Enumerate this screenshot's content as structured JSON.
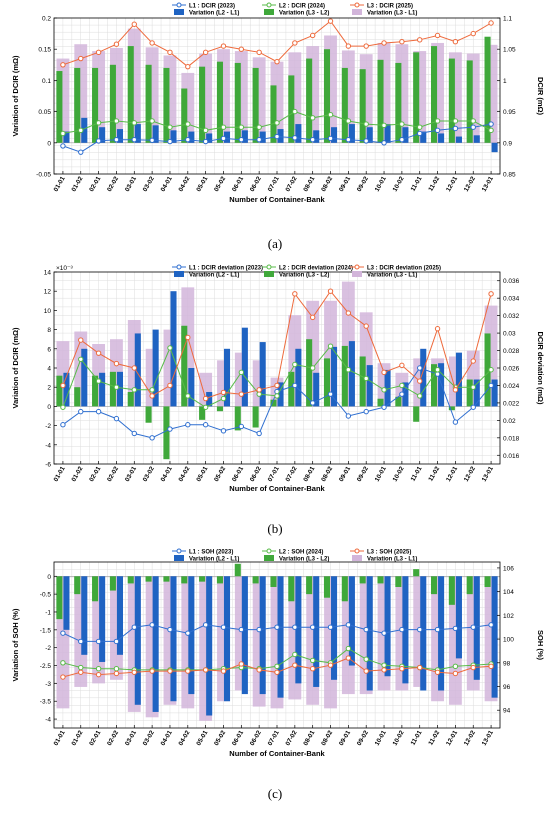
{
  "colors": {
    "l1": "#2f6fd0",
    "l2": "#58bb48",
    "l3": "#ee6a3c",
    "bar_l2_l1": "#1f63c2",
    "bar_l3_l2": "#3fa83a",
    "bar_l3_l1": "#d2b5da"
  },
  "chart_data": [
    {
      "type": "bar+line",
      "panel_label": "(a)",
      "categories": [
        "01-01",
        "01-02",
        "02-01",
        "02-02",
        "03-01",
        "03-02",
        "04-01",
        "04-02",
        "05-01",
        "05-02",
        "06-01",
        "06-02",
        "07-01",
        "07-02",
        "08-01",
        "08-02",
        "09-01",
        "09-02",
        "10-01",
        "10-02",
        "11-01",
        "11-02",
        "12-01",
        "12-02",
        "13-01"
      ],
      "xlabel": "Number of Container-Bank",
      "ylabel_left": "Variation of DCIR (mΩ)",
      "ylabel_right": "DCIR (mΩ)",
      "left_ylim": [
        -0.05,
        0.2
      ],
      "left_ticks": [
        "-0.05",
        "0",
        "0.05",
        "0.1",
        "0.15",
        "0.2"
      ],
      "left_tick_values": [
        -0.05,
        0,
        0.05,
        0.1,
        0.15,
        0.2
      ],
      "right_ylim": [
        0.85,
        1.1
      ],
      "right_ticks": [
        "0.85",
        "0.9",
        "0.95",
        "1",
        "1.05",
        "1.1"
      ],
      "right_tick_values": [
        0.85,
        0.9,
        0.95,
        1.0,
        1.05,
        1.1
      ],
      "legend": [
        "L1 : DCIR (2023)",
        "L2 : DCIR (2024)",
        "L3 : DCIR (2025)",
        "Variation (L2 - L1)",
        "Variation (L3 - L2)",
        "Variation (L3 - L1)"
      ],
      "bars": {
        "l3_l1": [
          0.135,
          0.158,
          0.147,
          0.152,
          0.183,
          0.153,
          0.14,
          0.112,
          0.143,
          0.15,
          0.147,
          0.137,
          0.13,
          0.145,
          0.155,
          0.172,
          0.148,
          0.142,
          0.16,
          0.158,
          0.147,
          0.16,
          0.145,
          0.143,
          0.157
        ],
        "l2_l1": [
          0.018,
          0.04,
          0.025,
          0.022,
          0.03,
          0.028,
          0.02,
          0.018,
          0.015,
          0.018,
          0.02,
          0.018,
          0.022,
          0.03,
          0.02,
          0.025,
          0.03,
          0.025,
          0.03,
          0.025,
          0.018,
          0.015,
          0.01,
          0.012,
          -0.015
        ],
        "l3_l2": [
          0.115,
          0.12,
          0.12,
          0.125,
          0.155,
          0.125,
          0.12,
          0.087,
          0.122,
          0.13,
          0.128,
          0.12,
          0.092,
          0.108,
          0.135,
          0.15,
          0.12,
          0.118,
          0.133,
          0.128,
          0.145,
          0.155,
          0.135,
          0.132,
          0.17
        ]
      },
      "lines": {
        "l1": [
          0.895,
          0.885,
          0.903,
          0.905,
          0.905,
          0.904,
          0.902,
          0.905,
          0.902,
          0.907,
          0.905,
          0.905,
          0.91,
          0.908,
          0.905,
          0.907,
          0.905,
          0.903,
          0.9,
          0.905,
          0.915,
          0.92,
          0.923,
          0.925,
          0.93
        ],
        "l2": [
          0.915,
          0.92,
          0.932,
          0.935,
          0.932,
          0.935,
          0.925,
          0.93,
          0.92,
          0.925,
          0.925,
          0.925,
          0.932,
          0.95,
          0.94,
          0.945,
          0.935,
          0.93,
          0.928,
          0.93,
          0.925,
          0.935,
          0.935,
          0.935,
          0.92
        ],
        "l3": [
          1.025,
          1.035,
          1.045,
          1.058,
          1.09,
          1.06,
          1.045,
          1.022,
          1.045,
          1.055,
          1.05,
          1.045,
          1.03,
          1.06,
          1.072,
          1.095,
          1.055,
          1.055,
          1.06,
          1.062,
          1.065,
          1.072,
          1.062,
          1.075,
          1.092
        ]
      }
    },
    {
      "type": "bar+line",
      "panel_label": "(b)",
      "categories": [
        "01-01",
        "01-02",
        "02-01",
        "02-02",
        "03-01",
        "03-02",
        "04-01",
        "04-02",
        "05-01",
        "05-02",
        "06-01",
        "06-02",
        "07-01",
        "07-02",
        "08-01",
        "08-02",
        "09-01",
        "09-02",
        "10-01",
        "10-02",
        "11-01",
        "11-02",
        "12-01",
        "12-02",
        "13-01"
      ],
      "xlabel": "Number of Container-Bank",
      "ylabel_left": "Variation of DCIR (mΩ)",
      "ylabel_right": "DCIR deviation (mΩ)",
      "left_scale_note": "×10⁻³",
      "left_ylim": [
        -6,
        14
      ],
      "left_ticks": [
        "-6",
        "-4",
        "-2",
        "0",
        "2",
        "4",
        "6",
        "8",
        "10",
        "12",
        "14"
      ],
      "left_tick_values": [
        -6,
        -4,
        -2,
        0,
        2,
        4,
        6,
        8,
        10,
        12,
        14
      ],
      "right_ylim": [
        0.015,
        0.037
      ],
      "right_ticks": [
        "0.016",
        "0.018",
        "0.02",
        "0.022",
        "0.024",
        "0.026",
        "0.028",
        "0.03",
        "0.032",
        "0.034",
        "0.036"
      ],
      "right_tick_values": [
        0.016,
        0.018,
        0.02,
        0.022,
        0.024,
        0.026,
        0.028,
        0.03,
        0.032,
        0.034,
        0.036
      ],
      "legend": [
        "L1 : DCIR deviation (2023)",
        "L2 : DCIR deviation (2024)",
        "L3 : DCIR deviation (2025)",
        "Variation (L2 - L1)",
        "Variation (L3 - L2)",
        "Variation (L3 - L1)"
      ],
      "bars": {
        "l3_l1": [
          6.8,
          7.8,
          6.5,
          7.0,
          9.0,
          6.0,
          8.0,
          12.4,
          3.5,
          4.8,
          5.6,
          4.8,
          3.0,
          9.5,
          11.0,
          11.0,
          13.0,
          9.8,
          4.5,
          3.5,
          5.0,
          5.0,
          5.2,
          5.8,
          10.5
        ],
        "l2_l1": [
          3.5,
          6.0,
          3.5,
          3.6,
          7.6,
          8.0,
          12.0,
          4.0,
          1.5,
          6.0,
          8.2,
          6.7,
          2.5,
          6.0,
          3.5,
          6.2,
          6.8,
          4.3,
          3.8,
          2.5,
          6.0,
          4.5,
          5.6,
          2.8,
          2.8
        ],
        "l3_l2": [
          3.2,
          2.0,
          3.2,
          3.6,
          1.5,
          -1.7,
          -5.5,
          8.4,
          -1.4,
          -0.5,
          -2.5,
          -2.2,
          0.7,
          3.6,
          7.0,
          5.0,
          6.3,
          5.2,
          0.8,
          1.0,
          -1.6,
          4.4,
          -0.4,
          2.8,
          7.6
        ]
      },
      "lines": {
        "l1": [
          0.0195,
          0.021,
          0.021,
          0.0202,
          0.0185,
          0.018,
          0.019,
          0.0195,
          0.0195,
          0.0188,
          0.0193,
          0.0185,
          0.0233,
          0.024,
          0.022,
          0.023,
          0.0205,
          0.021,
          0.0215,
          0.023,
          0.026,
          0.0253,
          0.0198,
          0.0215,
          0.024
        ],
        "l2": [
          0.0215,
          0.027,
          0.0245,
          0.0238,
          0.0235,
          0.0235,
          0.0283,
          0.0228,
          0.0215,
          0.0225,
          0.0255,
          0.023,
          0.0228,
          0.0264,
          0.026,
          0.0285,
          0.0258,
          0.0248,
          0.0235,
          0.024,
          0.0228,
          0.0258,
          0.0238,
          0.0238,
          0.0258
        ],
        "l3": [
          0.024,
          0.0292,
          0.0277,
          0.0265,
          0.026,
          0.0228,
          0.024,
          0.0295,
          0.0225,
          0.0232,
          0.023,
          0.0235,
          0.024,
          0.0345,
          0.0318,
          0.0348,
          0.0323,
          0.0308,
          0.0255,
          0.0263,
          0.0245,
          0.0305,
          0.0235,
          0.0268,
          0.0345
        ]
      }
    },
    {
      "type": "bar+line",
      "panel_label": "(c)",
      "categories": [
        "01-01",
        "01-02",
        "02-01",
        "02-02",
        "03-01",
        "03-02",
        "04-01",
        "04-02",
        "05-01",
        "05-02",
        "06-01",
        "06-02",
        "07-01",
        "07-02",
        "08-01",
        "08-02",
        "09-01",
        "09-02",
        "10-01",
        "10-02",
        "11-01",
        "11-02",
        "12-01",
        "12-02",
        "13-01"
      ],
      "xlabel": "Number of Container-Bank",
      "ylabel_left": "Variation of SOH (%)",
      "ylabel_right": "SOH (%)",
      "left_ylim": [
        -4.25,
        0.4
      ],
      "left_ticks": [
        "-4",
        "-3.5",
        "-3",
        "-2.5",
        "-2",
        "-1.5",
        "-1",
        "-0.5",
        "0"
      ],
      "left_tick_values": [
        -4,
        -3.5,
        -3,
        -2.5,
        -2,
        -1.5,
        -1,
        -0.5,
        0
      ],
      "right_ylim": [
        92.5,
        106.5
      ],
      "right_ticks": [
        "94",
        "96",
        "98",
        "100",
        "102",
        "104",
        "106"
      ],
      "right_tick_values": [
        94,
        96,
        98,
        100,
        102,
        104,
        106
      ],
      "legend": [
        "L1 : SOH (2023)",
        "L2 : SOH (2024)",
        "L3 : SOH (2025)",
        "Variation (L2 - L1)",
        "Variation (L3 - L2)",
        "Variation (L3 - L1)"
      ],
      "bars": {
        "l3_l1": [
          -3.7,
          -3.1,
          -3.0,
          -2.9,
          -3.8,
          -3.95,
          -3.6,
          -3.7,
          -4.05,
          -3.5,
          -3.2,
          -3.65,
          -3.7,
          -3.45,
          -3.6,
          -3.7,
          -3.3,
          -3.3,
          -3.2,
          -3.2,
          -3.1,
          -3.5,
          -3.6,
          -3.2,
          -3.5
        ],
        "l2_l1": [
          -1.5,
          -2.2,
          -2.4,
          -2.2,
          -3.6,
          -3.8,
          -3.5,
          -3.3,
          -3.9,
          -3.5,
          -3.3,
          -3.3,
          -3.4,
          -3.0,
          -3.1,
          -2.9,
          -2.5,
          -3.2,
          -2.8,
          -3.0,
          -3.2,
          -3.2,
          -2.3,
          -2.9,
          -3.4
        ],
        "l3_l2": [
          -1.2,
          -0.5,
          -0.7,
          -0.4,
          -0.2,
          -0.15,
          -0.15,
          -0.2,
          -0.15,
          -0.2,
          0.35,
          -0.2,
          -0.3,
          -0.7,
          -0.5,
          -0.6,
          -0.7,
          -0.2,
          -0.2,
          -0.3,
          0.2,
          -0.5,
          -0.8,
          -0.5,
          -0.3
        ]
      },
      "lines": {
        "l1": [
          100.5,
          99.8,
          99.8,
          99.8,
          101.0,
          101.2,
          100.8,
          100.5,
          101.2,
          101.0,
          100.8,
          100.8,
          101.0,
          101.0,
          101.0,
          101.0,
          101.2,
          100.8,
          100.5,
          100.8,
          100.8,
          100.8,
          100.9,
          101.0,
          101.2
        ],
        "l2": [
          98.0,
          97.6,
          97.5,
          97.5,
          97.4,
          97.4,
          97.4,
          97.4,
          97.4,
          97.5,
          97.6,
          97.5,
          97.7,
          98.7,
          98.2,
          98.0,
          99.2,
          98.3,
          97.8,
          97.7,
          97.6,
          97.4,
          97.7,
          97.8,
          97.9
        ],
        "l3": [
          96.8,
          97.2,
          97.0,
          97.1,
          97.2,
          97.3,
          97.3,
          97.3,
          97.4,
          97.3,
          97.9,
          97.4,
          97.2,
          97.8,
          97.5,
          97.8,
          98.4,
          97.3,
          97.4,
          97.5,
          97.6,
          97.2,
          97.1,
          97.6,
          97.7
        ]
      }
    }
  ]
}
